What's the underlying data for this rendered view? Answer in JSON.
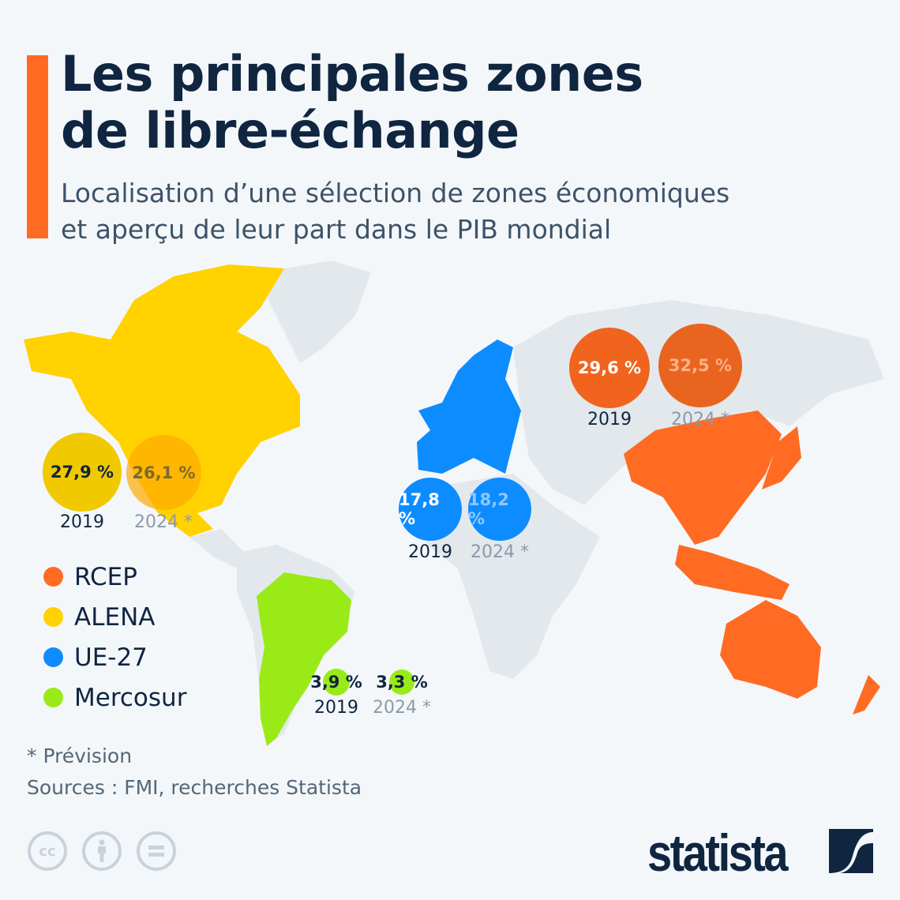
{
  "title_lines": [
    "Les principales zones",
    "de libre-échange"
  ],
  "subtitle_lines": [
    "Localisation d’une sélection de zones économiques",
    "et aperçu de leur part dans le PIB mondial"
  ],
  "colors": {
    "RCEP": "#ff6b22",
    "ALENA": "#ffd200",
    "UE-27": "#0d8cff",
    "Mercosur": "#9aea18",
    "land": "#e3e8ed",
    "accent": "#ff6b22"
  },
  "legend": [
    {
      "label": "RCEP",
      "color": "#ff6b22"
    },
    {
      "label": "ALENA",
      "color": "#ffd200"
    },
    {
      "label": "UE-27",
      "color": "#0d8cff"
    },
    {
      "label": "Mercosur",
      "color": "#9aea18"
    }
  ],
  "chart_data": {
    "type": "bubble-map",
    "unit": "% du PIB mondial",
    "years": [
      "2019",
      "2024 *"
    ],
    "series": [
      {
        "name": "ALENA",
        "values": [
          27.9,
          26.1
        ],
        "labels": [
          "27,9 %",
          "26,1 %"
        ]
      },
      {
        "name": "UE-27",
        "values": [
          17.8,
          18.2
        ],
        "labels": [
          "17,8 %",
          "18,2 %"
        ]
      },
      {
        "name": "RCEP",
        "values": [
          29.6,
          32.5
        ],
        "labels": [
          "29,6 %",
          "32,5 %"
        ]
      },
      {
        "name": "Mercosur",
        "values": [
          3.9,
          3.3
        ],
        "labels": [
          "3,9 %",
          "3,3 %"
        ]
      }
    ]
  },
  "footnote": "* Prévision",
  "sources": "Sources : FMI, recherches Statista",
  "license_icons": [
    "cc-icon",
    "by-icon",
    "nd-icon"
  ],
  "logo_text": "statista"
}
